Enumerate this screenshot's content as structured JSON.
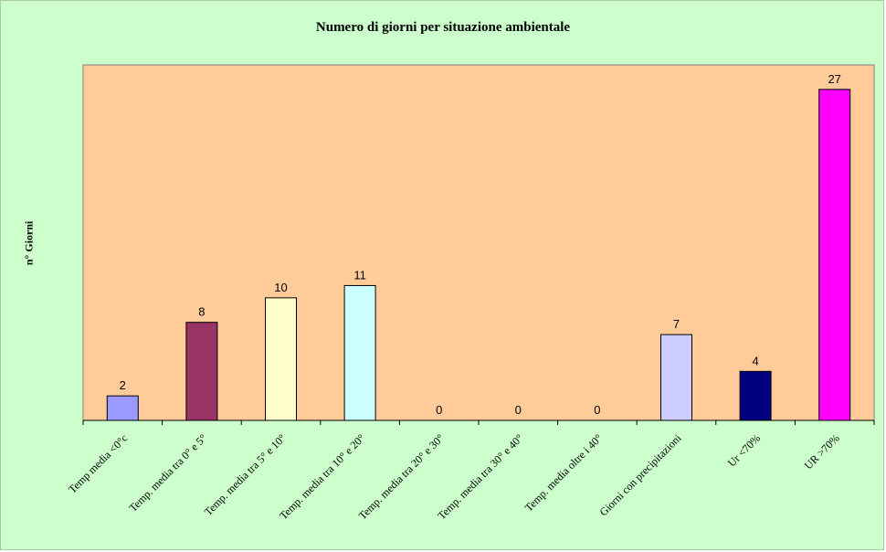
{
  "chart_data": {
    "type": "bar",
    "title": "Numero di giorni per situazione ambientale",
    "ylabel": "n° Giorni",
    "xlabel": "",
    "ylim": [
      0,
      29
    ],
    "grid": false,
    "legend": "none",
    "categories": [
      "Temp media <0°c",
      "Temp. media tra 0° e 5°",
      "Temp. media tra 5° e 10°",
      "Temp. media tra 10° e 20°",
      "Temp. media tra 20° e 30°",
      "Temp. media tra 30° e 40°",
      "Temp. media oltre i 40°",
      "Giorni con precipitazioni",
      "Ur  <70%",
      "UR >70%"
    ],
    "values": [
      2,
      8,
      10,
      11,
      0,
      0,
      0,
      7,
      4,
      27
    ],
    "bar_colors": [
      "#9999ff",
      "#993366",
      "#ffffcc",
      "#ccffff",
      "#660066",
      "#ff8080",
      "#0066cc",
      "#ccccff",
      "#000080",
      "#ff00ff"
    ],
    "plot_background": "#ffcc99",
    "chart_background": "#ccffcc"
  }
}
